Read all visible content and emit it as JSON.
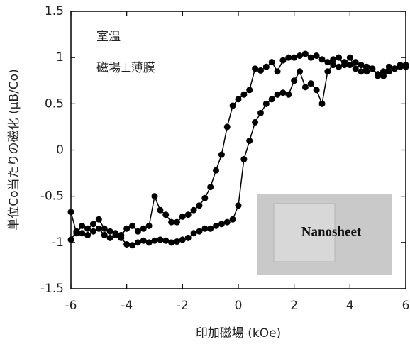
{
  "chart_data": {
    "type": "line",
    "xlabel": "印加磁場 (kOe)",
    "ylabel": "単位Co当たりの磁化 (μB/Co)",
    "annotations": [
      "室温",
      "磁場⊥薄膜"
    ],
    "inset_label": "Nanosheet",
    "x": [
      -6,
      -5.8,
      -5.6,
      -5.4,
      -5.2,
      -5,
      -4.8,
      -4.6,
      -4.4,
      -4.2,
      -4,
      -3.8,
      -3.6,
      -3.4,
      -3.2,
      -3,
      -2.8,
      -2.6,
      -2.4,
      -2.2,
      -2,
      -1.8,
      -1.6,
      -1.4,
      -1.2,
      -1,
      -0.8,
      -0.6,
      -0.4,
      -0.2,
      0,
      0.2,
      0.4,
      0.6,
      0.8,
      1,
      1.2,
      1.4,
      1.6,
      1.8,
      2,
      2.2,
      2.4,
      2.6,
      2.8,
      3,
      3.2,
      3.4,
      3.6,
      3.8,
      4,
      4.2,
      4.4,
      4.6,
      4.8,
      5,
      5.2,
      5.4,
      5.6,
      5.8,
      6
    ],
    "series": [
      {
        "color": "#000000",
        "values": [
          -0.67,
          -0.9,
          -0.82,
          -0.85,
          -0.8,
          -0.75,
          -0.85,
          -0.88,
          -0.9,
          -0.92,
          -0.85,
          -0.82,
          -0.88,
          -0.85,
          -0.82,
          -0.5,
          -0.65,
          -0.7,
          -0.78,
          -0.78,
          -0.72,
          -0.7,
          -0.65,
          -0.6,
          -0.52,
          -0.4,
          -0.22,
          -0.05,
          0.25,
          0.48,
          0.55,
          0.6,
          0.65,
          0.88,
          0.86,
          0.9,
          0.95,
          0.85,
          0.97,
          1,
          1,
          1.02,
          1.04,
          1,
          1.02,
          0.98,
          0.95,
          0.98,
          1,
          0.92,
          1,
          0.88,
          0.85,
          0.9,
          0.88,
          0.82,
          0.85,
          0.9,
          0.88,
          0.9,
          0.92
        ]
      },
      {
        "color": "#000000",
        "values": [
          -0.97,
          -0.88,
          -0.9,
          -0.92,
          -0.88,
          -0.85,
          -0.92,
          -0.95,
          -0.92,
          -0.95,
          -1.02,
          -1.03,
          -1,
          -0.98,
          -1,
          -0.98,
          -0.97,
          -0.98,
          -1,
          -0.99,
          -0.97,
          -0.95,
          -0.9,
          -0.88,
          -0.85,
          -0.85,
          -0.82,
          -0.8,
          -0.78,
          -0.75,
          -0.6,
          -0.1,
          0.1,
          0.3,
          0.4,
          0.5,
          0.55,
          0.6,
          0.62,
          0.6,
          0.75,
          0.85,
          0.68,
          0.72,
          0.65,
          0.5,
          0.85,
          0.92,
          0.9,
          0.95,
          0.92,
          0.95,
          0.92,
          0.85,
          0.88,
          0.8,
          0.8,
          0.85,
          0.88,
          0.92,
          0.9
        ]
      }
    ],
    "xlim": [
      -6,
      6
    ],
    "xticks": [
      -6,
      -4,
      -2,
      0,
      2,
      4,
      6
    ],
    "ylim": [
      -1.5,
      1.5
    ],
    "yticks": [
      -1.5,
      -1,
      -0.5,
      0,
      0.5,
      1,
      1.5
    ]
  }
}
